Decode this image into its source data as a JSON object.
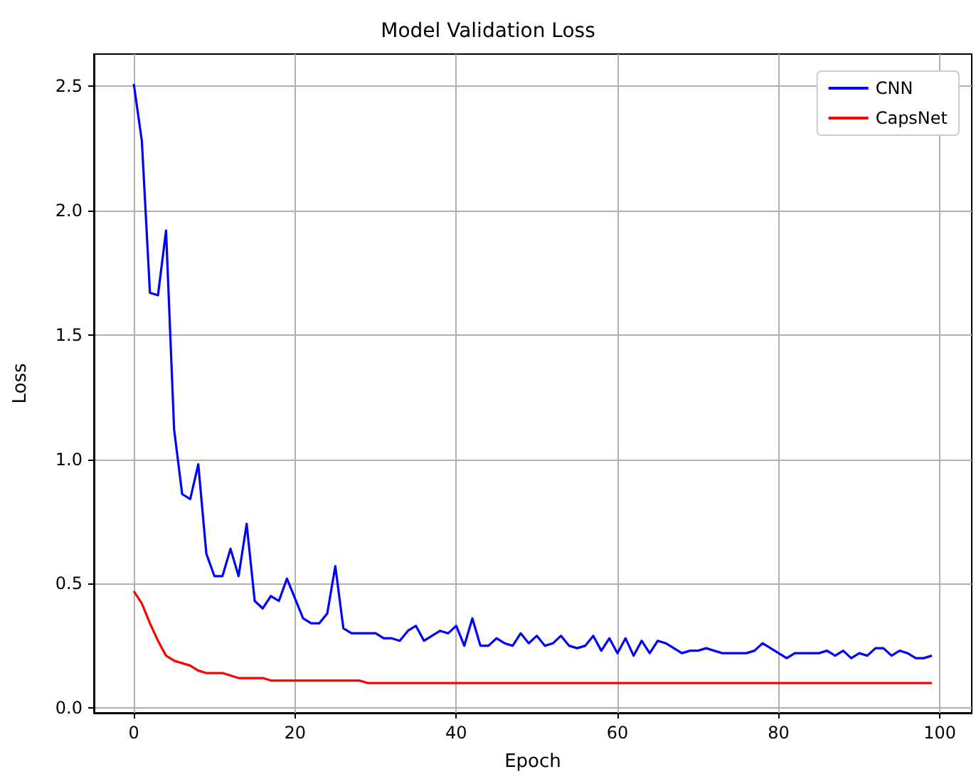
{
  "chart_data": {
    "type": "line",
    "title": "Model Validation Loss",
    "xlabel": "Epoch",
    "ylabel": "Loss",
    "x": [
      0,
      1,
      2,
      3,
      4,
      5,
      6,
      7,
      8,
      9,
      10,
      11,
      12,
      13,
      14,
      15,
      16,
      17,
      18,
      19,
      20,
      21,
      22,
      23,
      24,
      25,
      26,
      27,
      28,
      29,
      30,
      31,
      32,
      33,
      34,
      35,
      36,
      37,
      38,
      39,
      40,
      41,
      42,
      43,
      44,
      45,
      46,
      47,
      48,
      49,
      50,
      51,
      52,
      53,
      54,
      55,
      56,
      57,
      58,
      59,
      60,
      61,
      62,
      63,
      64,
      65,
      66,
      67,
      68,
      69,
      70,
      71,
      72,
      73,
      74,
      75,
      76,
      77,
      78,
      79,
      80,
      81,
      82,
      83,
      84,
      85,
      86,
      87,
      88,
      89,
      90,
      91,
      92,
      93,
      94,
      95,
      96,
      97,
      98,
      99
    ],
    "series": [
      {
        "name": "CNN",
        "color": "#0000ff",
        "values": [
          2.51,
          2.28,
          1.67,
          1.66,
          1.92,
          1.12,
          0.86,
          0.84,
          0.98,
          0.62,
          0.53,
          0.53,
          0.64,
          0.53,
          0.74,
          0.43,
          0.4,
          0.45,
          0.43,
          0.52,
          0.44,
          0.36,
          0.34,
          0.34,
          0.38,
          0.57,
          0.32,
          0.3,
          0.3,
          0.3,
          0.3,
          0.28,
          0.28,
          0.27,
          0.31,
          0.33,
          0.27,
          0.29,
          0.31,
          0.3,
          0.33,
          0.25,
          0.36,
          0.25,
          0.25,
          0.28,
          0.26,
          0.25,
          0.3,
          0.26,
          0.29,
          0.25,
          0.26,
          0.29,
          0.25,
          0.24,
          0.25,
          0.29,
          0.23,
          0.28,
          0.22,
          0.28,
          0.21,
          0.27,
          0.22,
          0.27,
          0.26,
          0.24,
          0.22,
          0.23,
          0.23,
          0.24,
          0.23,
          0.22,
          0.22,
          0.22,
          0.22,
          0.23,
          0.26,
          0.24,
          0.22,
          0.2,
          0.22,
          0.22,
          0.22,
          0.22,
          0.23,
          0.21,
          0.23,
          0.2,
          0.22,
          0.21,
          0.24,
          0.24,
          0.21,
          0.23,
          0.22,
          0.2,
          0.2,
          0.21
        ]
      },
      {
        "name": "CapsNet",
        "color": "#ff0000",
        "values": [
          0.47,
          0.42,
          0.34,
          0.27,
          0.21,
          0.19,
          0.18,
          0.17,
          0.15,
          0.14,
          0.14,
          0.14,
          0.13,
          0.12,
          0.12,
          0.12,
          0.12,
          0.11,
          0.11,
          0.11,
          0.11,
          0.11,
          0.11,
          0.11,
          0.11,
          0.11,
          0.11,
          0.11,
          0.11,
          0.1,
          0.1,
          0.1,
          0.1,
          0.1,
          0.1,
          0.1,
          0.1,
          0.1,
          0.1,
          0.1,
          0.1,
          0.1,
          0.1,
          0.1,
          0.1,
          0.1,
          0.1,
          0.1,
          0.1,
          0.1,
          0.1,
          0.1,
          0.1,
          0.1,
          0.1,
          0.1,
          0.1,
          0.1,
          0.1,
          0.1,
          0.1,
          0.1,
          0.1,
          0.1,
          0.1,
          0.1,
          0.1,
          0.1,
          0.1,
          0.1,
          0.1,
          0.1,
          0.1,
          0.1,
          0.1,
          0.1,
          0.1,
          0.1,
          0.1,
          0.1,
          0.1,
          0.1,
          0.1,
          0.1,
          0.1,
          0.1,
          0.1,
          0.1,
          0.1,
          0.1,
          0.1,
          0.1,
          0.1,
          0.1,
          0.1,
          0.1,
          0.1,
          0.1,
          0.1,
          0.1
        ]
      }
    ],
    "xlim": [
      -4.95,
      103.95
    ],
    "xticks": [
      0,
      20,
      40,
      60,
      80,
      100
    ],
    "ylim": [
      -0.02,
      2.63
    ],
    "yticks": [
      {
        "value": 0,
        "label": "0.0"
      },
      {
        "value": 0.5,
        "label": "0.5"
      },
      {
        "value": 1,
        "label": "1.0"
      },
      {
        "value": 1.5,
        "label": "1.5"
      },
      {
        "value": 2,
        "label": "2.0"
      },
      {
        "value": 2.5,
        "label": "2.5"
      }
    ],
    "grid": true,
    "legend": "top right",
    "marker": "none",
    "line_style": "solid"
  }
}
